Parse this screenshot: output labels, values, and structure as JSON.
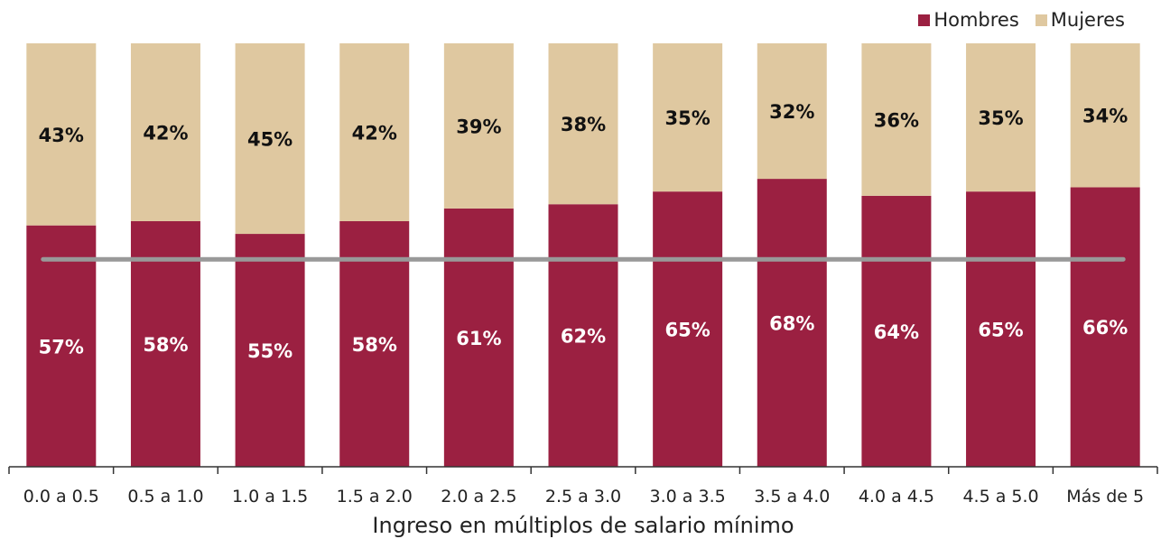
{
  "chart_data": {
    "type": "bar",
    "stacked": true,
    "normalized_percent": true,
    "categories": [
      "0.0 a 0.5",
      "0.5 a 1.0",
      "1.0 a 1.5",
      "1.5 a 2.0",
      "2.0 a 2.5",
      "2.5 a 3.0",
      "3.0 a 3.5",
      "3.5 a 4.0",
      "4.0 a 4.5",
      "4.5 a 5.0",
      "Más de 5"
    ],
    "series": [
      {
        "name": "Hombres",
        "values": [
          57,
          58,
          55,
          58,
          61,
          62,
          65,
          68,
          64,
          65,
          66
        ],
        "labels": [
          "57%",
          "58%",
          "55%",
          "58%",
          "61%",
          "62%",
          "65%",
          "68%",
          "64%",
          "65%",
          "66%"
        ],
        "color": "#9b2041"
      },
      {
        "name": "Mujeres",
        "values": [
          43,
          42,
          45,
          42,
          39,
          38,
          35,
          32,
          36,
          35,
          34
        ],
        "labels": [
          "43%",
          "42%",
          "45%",
          "42%",
          "39%",
          "38%",
          "35%",
          "32%",
          "36%",
          "35%",
          "34%"
        ],
        "color": "#dfc8a0"
      }
    ],
    "reference_line": {
      "value": 49,
      "color": "#999999"
    },
    "xlabel": "Ingreso en múltiplos de salario mínimo",
    "ylabel": "",
    "ylim": [
      0,
      100
    ],
    "legend_position": "top-right",
    "grid": false
  }
}
